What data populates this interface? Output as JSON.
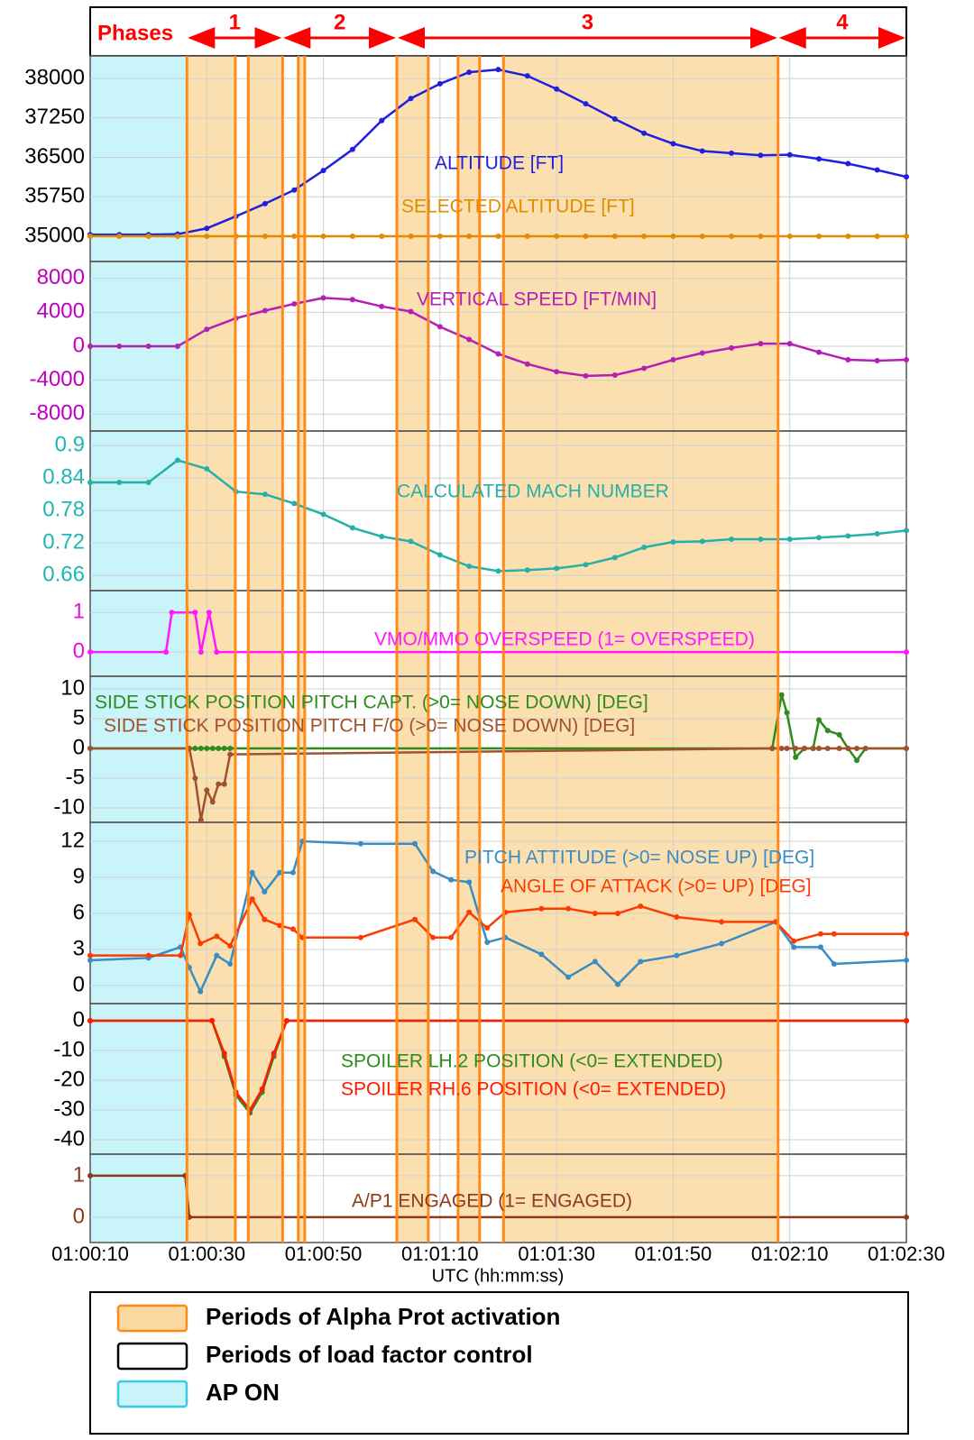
{
  "phases": {
    "title": "Phases",
    "items": [
      {
        "label": "1",
        "start": 3626.6,
        "end": 3643
      },
      {
        "label": "2",
        "start": 3643,
        "end": 3662.6
      },
      {
        "label": "3",
        "start": 3662.6,
        "end": 3728
      },
      {
        "label": "4",
        "start": 3728,
        "end": 3750
      }
    ]
  },
  "x_axis": {
    "label": "UTC (hh:mm:ss)",
    "xlim": [
      3610,
      3750
    ],
    "xticks": [
      {
        "value": 3610,
        "label": "01:00:10"
      },
      {
        "value": 3630,
        "label": "01:00:30"
      },
      {
        "value": 3650,
        "label": "01:00:50"
      },
      {
        "value": 3670,
        "label": "01:01:10"
      },
      {
        "value": 3690,
        "label": "01:01:30"
      },
      {
        "value": 3710,
        "label": "01:01:50"
      },
      {
        "value": 3730,
        "label": "01:02:10"
      },
      {
        "value": 3750,
        "label": "01:02:30"
      }
    ]
  },
  "ap_on": [
    3610,
    3626.6
  ],
  "alpha_prot_periods": [
    [
      3626.6,
      3634.9
    ],
    [
      3637.1,
      3643
    ],
    [
      3645.7,
      3646.8
    ],
    [
      3662.6,
      3668
    ],
    [
      3673.1,
      3676.8
    ],
    [
      3680.9,
      3728
    ]
  ],
  "chart_data": [
    {
      "type": "line",
      "ylim": [
        34520,
        38430
      ],
      "yticks": [
        35000,
        35750,
        36500,
        37250,
        38000
      ],
      "tick_color": "#000000",
      "x": [
        3610,
        3615,
        3620,
        3625,
        3630,
        3635,
        3640,
        3645,
        3650,
        3655,
        3660,
        3665,
        3670,
        3675,
        3680,
        3685,
        3690,
        3695,
        3700,
        3705,
        3710,
        3715,
        3720,
        3725,
        3730,
        3735,
        3740,
        3745,
        3750
      ],
      "series": [
        {
          "name": "ALTITUDE [FT]",
          "color": "#1f1fe0",
          "values": [
            35030,
            35030,
            35030,
            35040,
            35150,
            35380,
            35620,
            35880,
            36250,
            36650,
            37200,
            37620,
            37900,
            38120,
            38170,
            38050,
            37800,
            37520,
            37230,
            36960,
            36760,
            36620,
            36580,
            36540,
            36550,
            36470,
            36380,
            36260,
            36130
          ]
        },
        {
          "name": "SELECTED ALTITUDE [FT]",
          "color": "#e08c00",
          "values": [
            35000,
            35000,
            35000,
            35000,
            35000,
            35000,
            35000,
            35000,
            35000,
            35000,
            35000,
            35000,
            35000,
            35000,
            35000,
            35000,
            35000,
            35000,
            35000,
            35000,
            35000,
            35000,
            35000,
            35000,
            35000,
            35000,
            35000,
            35000,
            35000
          ]
        }
      ]
    },
    {
      "type": "line",
      "ylim": [
        -10000,
        10000
      ],
      "yticks": [
        -8000,
        -4000,
        0,
        4000,
        8000
      ],
      "tick_color": "#c000c0",
      "x": [
        3610,
        3615,
        3620,
        3625,
        3630,
        3635,
        3640,
        3645,
        3650,
        3655,
        3660,
        3665,
        3670,
        3675,
        3680,
        3685,
        3690,
        3695,
        3700,
        3705,
        3710,
        3715,
        3720,
        3725,
        3730,
        3735,
        3740,
        3745,
        3750
      ],
      "series": [
        {
          "name": "VERTICAL SPEED [FT/MIN]",
          "color": "#b41fb4",
          "values": [
            0,
            0,
            0,
            0,
            2000,
            3300,
            4200,
            5000,
            5700,
            5500,
            4700,
            4100,
            2300,
            800,
            -900,
            -2100,
            -3000,
            -3500,
            -3400,
            -2600,
            -1600,
            -800,
            -200,
            300,
            300,
            -700,
            -1600,
            -1700,
            -1600
          ]
        }
      ]
    },
    {
      "type": "line",
      "ylim": [
        0.632,
        0.927
      ],
      "yticks": [
        0.66,
        0.72,
        0.78,
        0.84,
        0.9
      ],
      "tick_color": "#1fb6b6",
      "x": [
        3610,
        3615,
        3620,
        3625,
        3630,
        3635,
        3640,
        3645,
        3650,
        3655,
        3660,
        3665,
        3670,
        3675,
        3680,
        3685,
        3690,
        3695,
        3700,
        3705,
        3710,
        3715,
        3720,
        3725,
        3730,
        3735,
        3740,
        3745,
        3750
      ],
      "series": [
        {
          "name": "CALCULATED MACH NUMBER",
          "color": "#26b0a8",
          "values": [
            0.832,
            0.832,
            0.832,
            0.873,
            0.857,
            0.815,
            0.81,
            0.793,
            0.773,
            0.748,
            0.732,
            0.723,
            0.698,
            0.677,
            0.668,
            0.67,
            0.673,
            0.68,
            0.693,
            0.712,
            0.722,
            0.723,
            0.727,
            0.727,
            0.727,
            0.73,
            0.733,
            0.737,
            0.743
          ]
        }
      ]
    },
    {
      "type": "line",
      "ylim": [
        -0.61,
        1.55
      ],
      "yticks": [
        0,
        1
      ],
      "tick_color": "#e010e0",
      "x": [
        3610,
        3623,
        3624,
        3628,
        3629,
        3630.4,
        3631.7,
        3750
      ],
      "series": [
        {
          "name": "VMO/MMO OVERSPEED (1= OVERSPEED)",
          "color": "#ff19ff",
          "values": [
            0,
            0,
            1,
            1,
            0,
            1,
            0,
            0
          ]
        }
      ]
    },
    {
      "type": "line",
      "ylim": [
        -12.42,
        12.12
      ],
      "yticks": [
        -10,
        -5,
        0,
        5,
        10
      ],
      "tick_color": "#000000",
      "x": [
        3610,
        3627,
        3628,
        3629,
        3630,
        3631,
        3632,
        3633,
        3634,
        3727,
        3728.6,
        3729.5,
        3731,
        3732.5,
        3734,
        3735,
        3736.5,
        3738.5,
        3740,
        3741.5,
        3743,
        3750
      ],
      "series": [
        {
          "name": "SIDE STICK POSITION PITCH CAPT. (>0= NOSE DOWN) [DEG]",
          "color": "#2e8b1e",
          "values": [
            0,
            0,
            0,
            0,
            0,
            0,
            0,
            0,
            0,
            0,
            9,
            6,
            -1.5,
            0,
            0,
            4.8,
            3,
            2.3,
            0,
            -2,
            0,
            0
          ]
        },
        {
          "name": "SIDE STICK POSITION PITCH F/O (>0= NOSE DOWN) [DEG]",
          "color": "#a0522d",
          "values": [
            0,
            0,
            -5,
            -12,
            -7,
            -9,
            -6,
            -6,
            -1,
            0,
            0,
            0,
            0,
            0,
            0,
            0,
            0,
            0,
            0,
            0,
            0,
            0
          ]
        }
      ]
    },
    {
      "type": "line",
      "ylim": [
        -1.5,
        13.58
      ],
      "yticks": [
        0,
        3,
        6,
        9,
        12
      ],
      "tick_color": "#000000",
      "x": [
        3610,
        3620,
        3625.5,
        3627,
        3628.9,
        3631.7,
        3634,
        3637.8,
        3639.9,
        3642.5,
        3644.8,
        3646.4,
        3656.4,
        3665.7,
        3668.8,
        3671.9,
        3675,
        3678.1,
        3681.2,
        3687.4,
        3692,
        3696.6,
        3700.5,
        3704.4,
        3710.6,
        3718.3,
        3727.6,
        3730.7,
        3735.3,
        3737.6,
        3750
      ],
      "series": [
        {
          "name": "PITCH ATTITUDE (>0= NOSE UP) [DEG]",
          "color": "#3a8cc4",
          "values": [
            2.1,
            2.3,
            3.2,
            1.5,
            -0.5,
            2.5,
            1.8,
            9.4,
            7.8,
            9.4,
            9.4,
            12,
            11.8,
            11.8,
            9.5,
            8.8,
            8.6,
            3.6,
            4,
            2.6,
            0.7,
            2,
            0.1,
            2,
            2.5,
            3.5,
            5.3,
            3.2,
            3.2,
            1.8,
            2.1
          ]
        },
        {
          "name": "ANGLE OF ATTACK (>0= UP) [DEG]",
          "color": "#ff3a00",
          "values": [
            2.5,
            2.5,
            2.5,
            5.9,
            3.5,
            4.1,
            3.3,
            7.2,
            5.5,
            5,
            4.7,
            4,
            4,
            5.5,
            4,
            4,
            6.1,
            4.8,
            6.1,
            6.4,
            6.4,
            6,
            6,
            6.6,
            5.7,
            5.3,
            5.3,
            3.7,
            4.3,
            4.3,
            4.3
          ]
        }
      ]
    },
    {
      "type": "line",
      "ylim": [
        -44.85,
        5.76
      ],
      "yticks": [
        -40,
        -30,
        -20,
        -10,
        0
      ],
      "tick_color": "#000000",
      "x": [
        3610,
        3630.9,
        3633,
        3635,
        3637.4,
        3639.5,
        3641.5,
        3643.7,
        3750
      ],
      "series": [
        {
          "name": "SPOILER LH.2 POSITION (<0= EXTENDED)",
          "color": "#2e8b1e",
          "values": [
            0,
            0,
            -12,
            -25,
            -31,
            -24,
            -12,
            0,
            0
          ]
        },
        {
          "name": "SPOILER RH.6 POSITION (<0= EXTENDED)",
          "color": "#ff1a00",
          "values": [
            0,
            0,
            -11,
            -24,
            -30,
            -23,
            -11,
            0,
            0
          ]
        }
      ]
    },
    {
      "type": "line",
      "ylim": [
        -0.61,
        1.52
      ],
      "yticks": [
        0,
        1
      ],
      "tick_color": "#8b3a1a",
      "x": [
        3610,
        3626.3,
        3627,
        3750
      ],
      "series": [
        {
          "name": "A/P1 ENGAGED (1= ENGAGED)",
          "color": "#8b3a1a",
          "values": [
            1,
            1,
            0,
            0
          ]
        }
      ]
    }
  ],
  "legend": [
    {
      "label": "Periods of Alpha Prot activation",
      "color": "#fcd9a0",
      "edge": "#ff8a1a"
    },
    {
      "label": "Periods of load factor control",
      "color": "#ffffff",
      "edge": "#000000"
    },
    {
      "label": "AP ON",
      "color": "#c8f4fa",
      "edge": "#38c8e8"
    }
  ]
}
